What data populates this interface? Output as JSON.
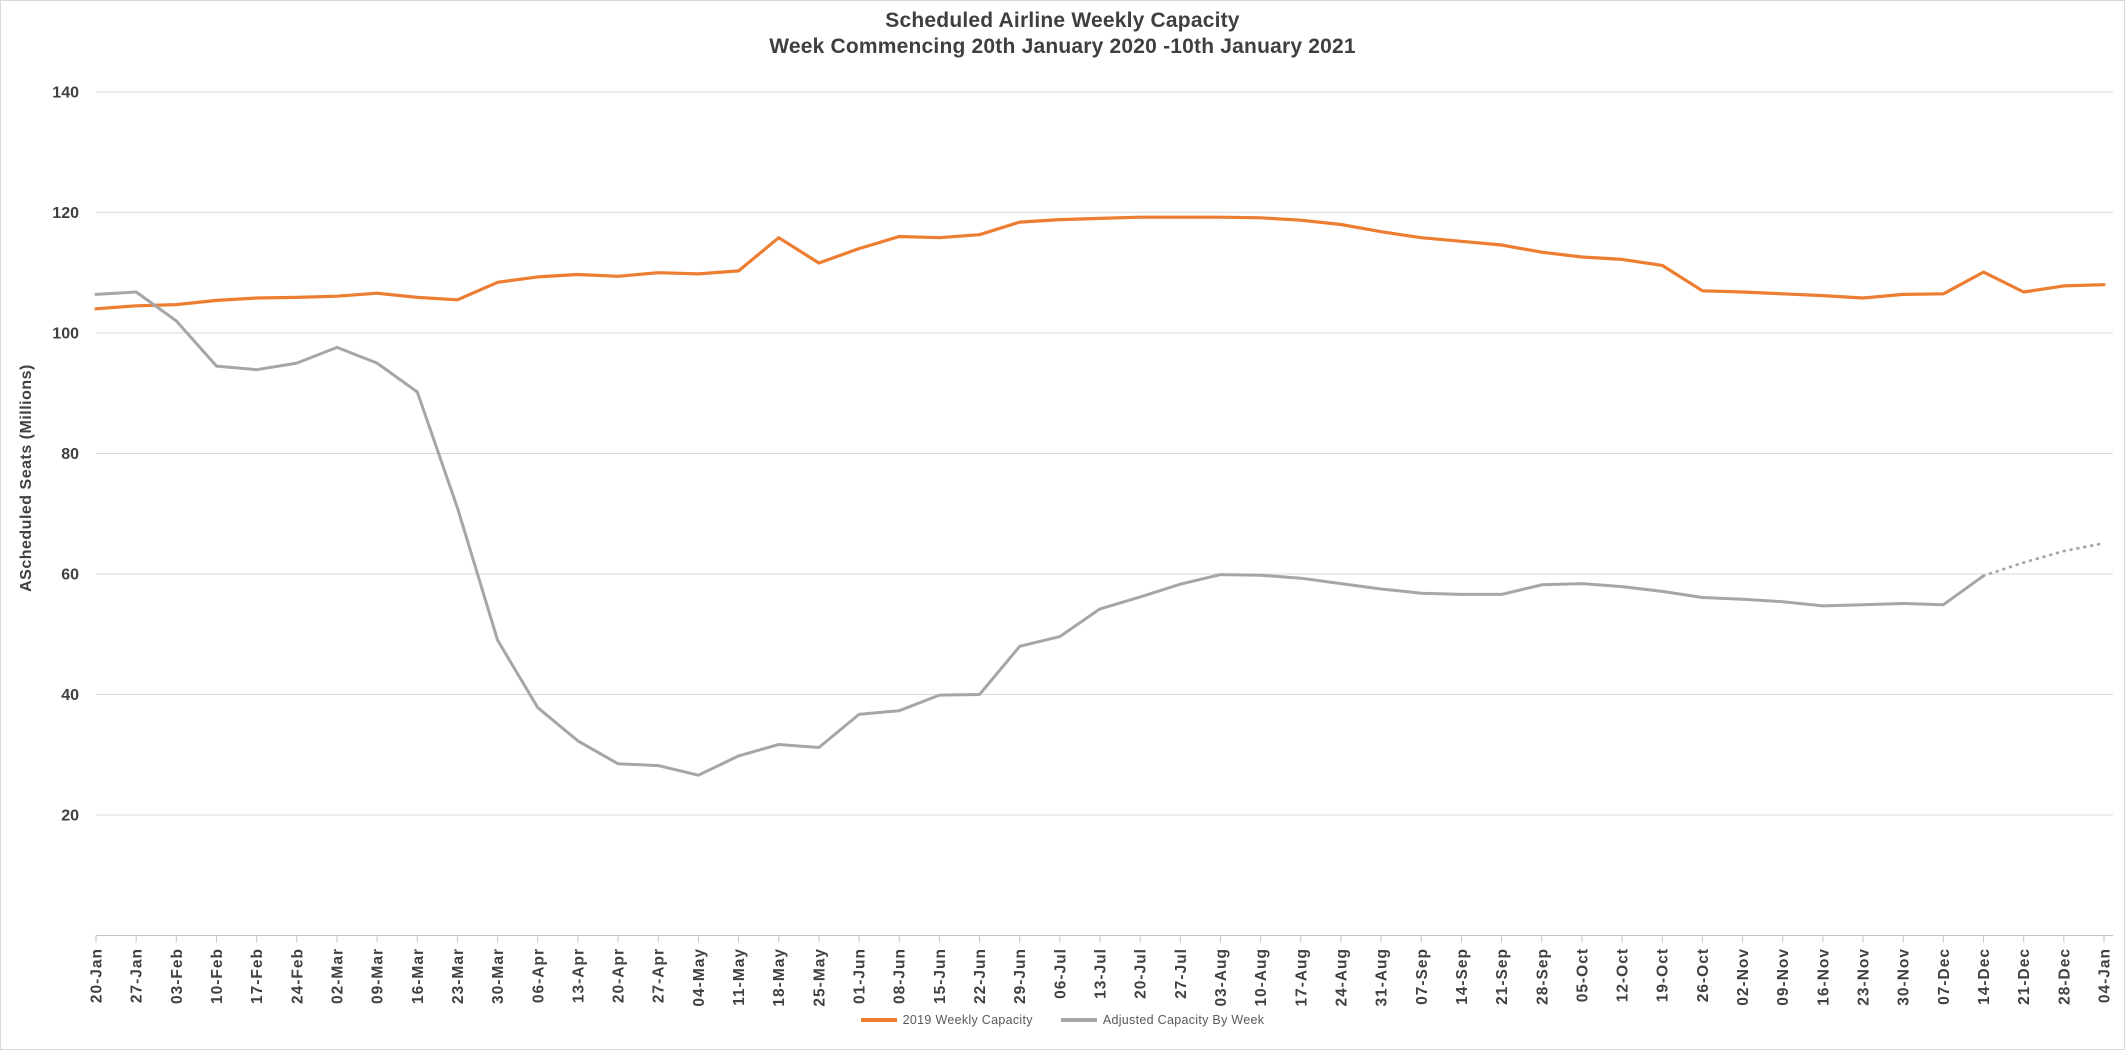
{
  "chart_data": {
    "type": "line",
    "title": "Scheduled Airline Weekly Capacity",
    "subtitle": "Week Commencing 20th January 2020 -10th January 2021",
    "ylabel": "AScheduled Seats (Millions)",
    "xlabel": "",
    "ylim": [
      0,
      140
    ],
    "y_ticks": [
      20,
      40,
      60,
      80,
      100,
      120,
      140
    ],
    "grid": true,
    "legend_position": "bottom",
    "categories": [
      "20-Jan",
      "27-Jan",
      "03-Feb",
      "10-Feb",
      "17-Feb",
      "24-Feb",
      "02-Mar",
      "09-Mar",
      "16-Mar",
      "23-Mar",
      "30-Mar",
      "06-Apr",
      "13-Apr",
      "20-Apr",
      "27-Apr",
      "04-May",
      "11-May",
      "18-May",
      "25-May",
      "01-Jun",
      "08-Jun",
      "15-Jun",
      "22-Jun",
      "29-Jun",
      "06-Jul",
      "13-Jul",
      "20-Jul",
      "27-Jul",
      "03-Aug",
      "10-Aug",
      "17-Aug",
      "24-Aug",
      "31-Aug",
      "07-Sep",
      "14-Sep",
      "21-Sep",
      "28-Sep",
      "05-Oct",
      "12-Oct",
      "19-Oct",
      "26-Oct",
      "02-Nov",
      "09-Nov",
      "16-Nov",
      "23-Nov",
      "30-Nov",
      "07-Dec",
      "14-Dec",
      "21-Dec",
      "28-Dec",
      "04-Jan"
    ],
    "series": [
      {
        "name": "2019 Weekly Capacity",
        "color": "#ED7D31",
        "style": "solid",
        "values": [
          104,
          104.5,
          104.7,
          105.4,
          105.8,
          105.9,
          106.1,
          106.6,
          105.9,
          105.5,
          108.4,
          109.3,
          109.7,
          109.4,
          110,
          109.8,
          110.3,
          115.8,
          111.6,
          114,
          116,
          115.8,
          116.3,
          118.4,
          118.8,
          119,
          119.2,
          119.2,
          119.2,
          119.1,
          118.7,
          118,
          116.8,
          115.8,
          115.2,
          114.6,
          113.4,
          112.6,
          112.2,
          111.2,
          107,
          106.8,
          106.5,
          106.2,
          105.8,
          106.4,
          106.5,
          110.1,
          106.8,
          107.8,
          108
        ]
      },
      {
        "name": "Adjusted Capacity By Week",
        "color": "#A6A6A6",
        "style": "solid_then_dotted",
        "dotted_from_index": 47,
        "values": [
          106.4,
          106.8,
          102,
          94.5,
          93.9,
          95,
          97.6,
          95,
          90.2,
          71,
          49,
          37.8,
          32.3,
          28.5,
          28.2,
          26.6,
          29.8,
          31.7,
          31.2,
          36.7,
          37.3,
          39.9,
          40,
          48,
          49.6,
          54.2,
          56.2,
          58.3,
          59.9,
          59.8,
          59.3,
          58.4,
          57.5,
          56.8,
          56.6,
          56.6,
          58.2,
          58.4,
          57.9,
          57.1,
          56.1,
          55.8,
          55.4,
          54.7,
          54.9,
          55.1,
          54.9,
          59.7,
          61.9,
          63.8,
          65.1
        ]
      }
    ]
  },
  "colors": {
    "accent_orange": "#ED7D31",
    "series_gray": "#A6A6A6",
    "gridline": "#D9D9D9",
    "axis_line": "#C6C6C6",
    "axis_text": "#404040",
    "title_text": "#3F3F3F",
    "legend_text": "#595959",
    "background": "#FFFFFF"
  }
}
